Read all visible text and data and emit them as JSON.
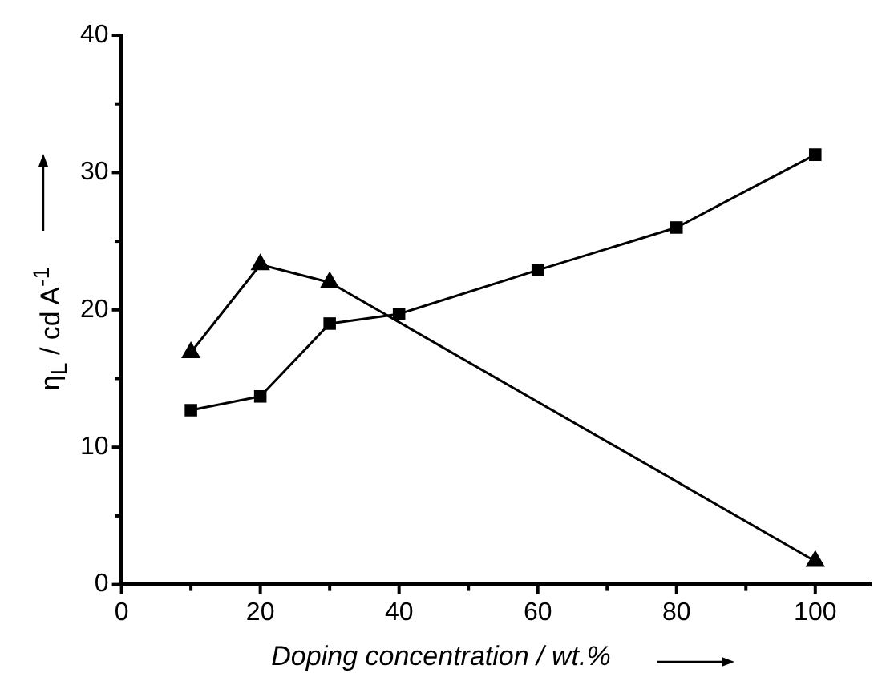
{
  "chart_data": {
    "type": "line",
    "xlabel": "Doping concentration / wt.%",
    "ylabel": "η$_{L}$ / cd A$^{-1}$",
    "xlim": [
      0,
      108
    ],
    "ylim": [
      0,
      40
    ],
    "xticks": [
      0,
      {
        "value": 10,
        "label": null
      },
      20,
      {
        "value": 30,
        "label": null
      },
      40,
      {
        "value": 50,
        "label": null
      },
      60,
      {
        "value": 70,
        "label": null
      },
      80,
      {
        "value": 90,
        "label": null
      },
      100
    ],
    "yticks": [
      0,
      {
        "value": 5,
        "label": null
      },
      10,
      {
        "value": 15,
        "label": null
      },
      20,
      {
        "value": 25,
        "label": null
      },
      30,
      {
        "value": 35,
        "label": null
      },
      40
    ],
    "grid": false,
    "legend": false,
    "line_style": "solid",
    "series": [
      {
        "color": "#000000",
        "marker": "square",
        "x": [
          10,
          20,
          30,
          40,
          60,
          80,
          100
        ],
        "values": [
          12.7,
          13.7,
          19.0,
          19.7,
          22.9,
          26.0,
          31.3
        ]
      },
      {
        "color": "#000000",
        "marker": "triangle",
        "x": [
          10,
          20,
          30,
          100
        ],
        "values": [
          16.9,
          23.3,
          22.0,
          1.7
        ]
      }
    ]
  }
}
